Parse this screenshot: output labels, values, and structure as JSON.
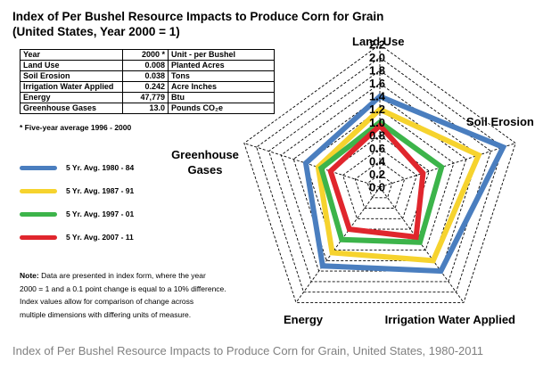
{
  "title_line1": "Index of Per Bushel Resource Impacts to Produce Corn for Grain",
  "title_line2": "(United States, Year  2000 = 1)",
  "table": {
    "headers": [
      "Year",
      "2000 *",
      "Unit - per Bushel"
    ],
    "rows": [
      [
        "Land Use",
        "0.008",
        "Planted Acres"
      ],
      [
        "Soil Erosion",
        "0.038",
        "Tons"
      ],
      [
        "Irrigation Water Applied",
        "0.242",
        "Acre Inches"
      ],
      [
        "Energy",
        "47,779",
        "Btu"
      ],
      [
        "Greenhouse Gases",
        "13.0",
        "Pounds CO₂e"
      ]
    ]
  },
  "footnote": "* Five-year average 1996 - 2000",
  "note": {
    "label": "Note:",
    "line1": "Data are presented in index form, where the year",
    "line2": "2000 = 1 and a 0.1 point change is equal to a 10%  difference.",
    "line3": "Index values allow for comparison of change across",
    "line4": "multiple dimensions  with differing units of measure."
  },
  "caption": "Index of Per Bushel Resource Impacts to Produce Corn for Grain, United States, 1980-2011",
  "chart_data": {
    "type": "radar",
    "title": "Index of Per Bushel Resource Impacts to Produce Corn for Grain (United States, Year  2000 = 1)",
    "axes": [
      "Land Use",
      "Soil Erosion",
      "Irrigation Water Applied",
      "Energy",
      "Greenhouse Gases"
    ],
    "axis_label_lines": [
      [
        "Land Use"
      ],
      [
        "Soil Erosion"
      ],
      [
        "Irrigation Water Applied"
      ],
      [
        "Energy"
      ],
      [
        "Greenhouse",
        "Gases"
      ]
    ],
    "ticks": [
      "0.0",
      "0.2",
      "0.4",
      "0.6",
      "0.8",
      "1.0",
      "1.2",
      "1.4",
      "1.6",
      "1.8",
      "2.0",
      "2.2"
    ],
    "range": [
      0,
      2.2
    ],
    "series": [
      {
        "name": "5 Yr. Avg. 1980 - 84",
        "color": "#4a7ebf",
        "values": [
          1.4,
          2.0,
          1.6,
          1.5,
          1.2
        ]
      },
      {
        "name": "5 Yr. Avg. 1987 - 91",
        "color": "#f6d32e",
        "values": [
          1.2,
          1.6,
          1.4,
          1.25,
          1.0
        ]
      },
      {
        "name": "5 Yr. Avg. 1997 - 01",
        "color": "#3cb44a",
        "values": [
          1.0,
          1.0,
          1.05,
          1.0,
          0.95
        ]
      },
      {
        "name": "5 Yr. Avg. 2007 - 11",
        "color": "#e0262d",
        "values": [
          0.95,
          0.7,
          0.95,
          0.8,
          0.8
        ]
      }
    ]
  }
}
